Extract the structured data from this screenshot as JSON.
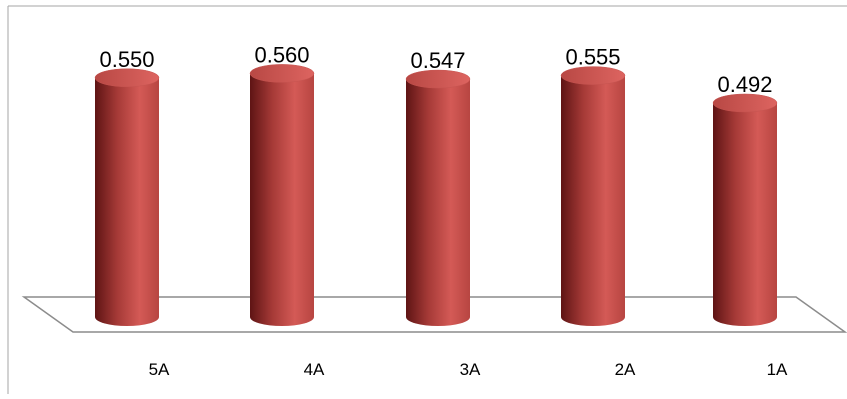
{
  "chart_data": {
    "type": "bar",
    "bar_shape": "cylinder",
    "categories": [
      "5A",
      "4A",
      "3A",
      "2A",
      "1A"
    ],
    "values": [
      0.55,
      0.56,
      0.547,
      0.555,
      0.492
    ],
    "data_labels": [
      "0.550",
      "0.560",
      "0.547",
      "0.555",
      "0.492"
    ],
    "title": "",
    "xlabel": "",
    "ylabel": "",
    "ylim": [
      0,
      0.6
    ],
    "grid": false,
    "legend": "none",
    "bar_color": "#c0504d"
  }
}
